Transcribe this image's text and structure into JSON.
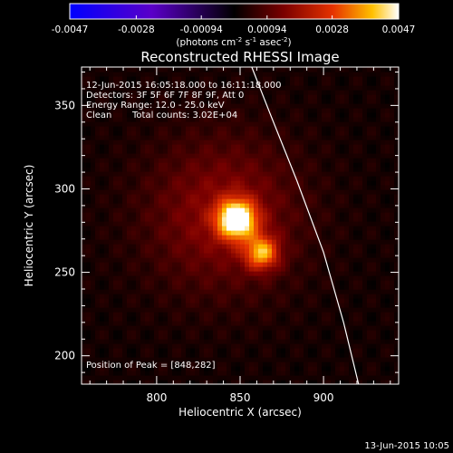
{
  "chart_data": {
    "type": "heatmap",
    "title": "Reconstructed RHESSI Image",
    "xlabel": "Heliocentric X (arcsec)",
    "ylabel": "Heliocentric Y (arcsec)",
    "xlim": [
      755,
      945
    ],
    "ylim": [
      183,
      373
    ],
    "x_ticks": [
      800,
      850,
      900
    ],
    "y_ticks": [
      200,
      250,
      300,
      350
    ],
    "colorbar": {
      "min": -0.0047,
      "max": 0.0047,
      "ticks": [
        "-0.0047",
        "-0.0028",
        "-0.00094",
        "0.00094",
        "0.0028",
        "0.0047"
      ],
      "tick_values": [
        -0.0047,
        -0.0028,
        -0.00094,
        0.00094,
        0.0028,
        0.0047
      ],
      "units_line1": "(photons cm",
      "units_exp1": "-2",
      "units_line2": " s",
      "units_exp2": "-1",
      "units_line3": " asec",
      "units_exp3": "-2",
      "units_close": ")"
    },
    "sources": [
      {
        "x": 848,
        "y": 282,
        "peak": 0.0047,
        "sigma": 8
      },
      {
        "x": 863,
        "y": 262,
        "peak": 0.0031,
        "sigma": 7
      },
      {
        "x": 840,
        "y": 285,
        "peak": 0.0014,
        "sigma": 32
      }
    ],
    "limb_curve": [
      [
        921,
        183
      ],
      [
        912,
        220
      ],
      [
        900,
        262
      ],
      [
        884,
        305
      ],
      [
        868,
        345
      ],
      [
        857,
        373
      ]
    ],
    "annotations": {
      "time_range": "12-Jun-2015 16:05:18.000 to 16:11:18.000",
      "detectors": "Detectors: 3F 5F 6F 7F 8F 9F, Att 0",
      "energy_range": "Energy Range: 12.0 - 25.0 keV",
      "method": "Clean",
      "total_counts": "Total counts: 3.02E+04",
      "peak_position": "Position of Peak = [848,282]"
    },
    "colors": {
      "background": "#000000",
      "axes": "#ffffff",
      "limb": "#ffffff"
    }
  },
  "footer": {
    "timestamp": "13-Jun-2015 10:05"
  }
}
